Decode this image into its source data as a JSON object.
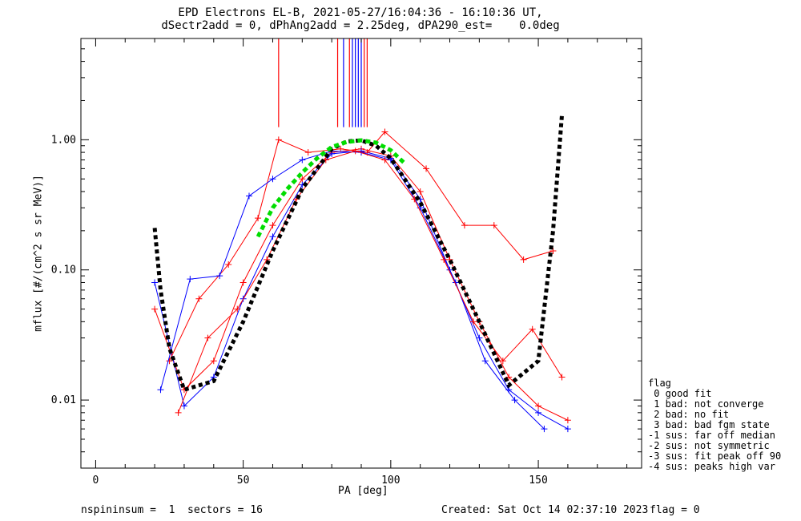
{
  "title": {
    "line1": "EPD Electrons EL-B, 2021-05-27/16:04:36 - 16:10:36 UT,",
    "line2": "dSectr2add = 0, dPhAng2add = 2.25deg, dPA290_est=    0.0deg"
  },
  "footer": {
    "left": "nspininsum =  1  sectors = 16",
    "created": "Created: Sat Oct 14 02:37:10 2023",
    "flag": "flag = 0"
  },
  "legend": {
    "title": "flag",
    "entries": [
      " 0 good fit",
      " 1 bad: not converge",
      " 2 bad: no fit",
      " 3 bad: bad fgm state",
      "-1 sus: far off median",
      "-2 sus: not symmetric",
      "-3 sus: fit peak off 90",
      "-4 sus: peaks high var"
    ]
  },
  "colors": {
    "red": "#ff0000",
    "blue": "#0000ff",
    "model": "#000000",
    "fit": "#00dd00"
  },
  "chart_data": {
    "type": "line",
    "xlabel": "PA [deg]",
    "ylabel": "mflux [#/(cm^2 s sr MeV)]",
    "xlim": [
      -5,
      185
    ],
    "ylim": [
      0.003,
      6
    ],
    "yscale": "log",
    "x_ticks": [
      0,
      50,
      100,
      150
    ],
    "y_ticks": [
      0.01,
      0.1,
      1.0
    ],
    "y_tick_labels": [
      "0.01",
      "0.10",
      "1.00"
    ],
    "model_curve": {
      "x": [
        20,
        22,
        25,
        30,
        40,
        50,
        60,
        70,
        80,
        85,
        90,
        95,
        100,
        110,
        120,
        130,
        140,
        150,
        155,
        158
      ],
      "y": [
        0.21,
        0.07,
        0.025,
        0.012,
        0.014,
        0.04,
        0.14,
        0.42,
        0.85,
        0.97,
        0.99,
        0.9,
        0.72,
        0.33,
        0.12,
        0.04,
        0.013,
        0.02,
        0.2,
        1.55
      ]
    },
    "fit_curve": {
      "x": [
        55,
        60,
        65,
        70,
        75,
        80,
        85,
        90,
        95,
        100,
        105
      ],
      "y": [
        0.18,
        0.3,
        0.42,
        0.56,
        0.72,
        0.88,
        0.96,
        0.99,
        0.95,
        0.83,
        0.65
      ]
    },
    "series": [
      {
        "color": "red",
        "x": [
          20,
          30,
          40,
          50,
          60,
          70,
          80,
          90,
          100,
          110,
          120,
          130,
          140,
          150,
          160
        ],
        "y": [
          0.05,
          0.012,
          0.02,
          0.08,
          0.22,
          0.5,
          0.8,
          0.85,
          0.75,
          0.4,
          0.12,
          0.04,
          0.015,
          0.009,
          0.007
        ]
      },
      {
        "color": "blue",
        "x": [
          20,
          30,
          40,
          50,
          60,
          70,
          80,
          90,
          100,
          110,
          120,
          130,
          140,
          150,
          160
        ],
        "y": [
          0.08,
          0.009,
          0.015,
          0.06,
          0.18,
          0.45,
          0.78,
          0.82,
          0.72,
          0.35,
          0.1,
          0.03,
          0.012,
          0.008,
          0.006
        ]
      },
      {
        "color": "red",
        "x": [
          25,
          35,
          45,
          55,
          62,
          72,
          83,
          92,
          98,
          112,
          125,
          135,
          145,
          155
        ],
        "y": [
          0.02,
          0.06,
          0.11,
          0.25,
          1.0,
          0.8,
          0.85,
          0.8,
          1.15,
          0.6,
          0.22,
          0.22,
          0.12,
          0.14
        ]
      },
      {
        "color": "blue",
        "x": [
          22,
          32,
          42,
          52,
          60,
          70,
          80,
          90,
          100,
          110,
          122,
          132,
          142,
          152
        ],
        "y": [
          0.012,
          0.085,
          0.09,
          0.37,
          0.5,
          0.7,
          0.82,
          0.8,
          0.7,
          0.3,
          0.08,
          0.02,
          0.01,
          0.006
        ]
      },
      {
        "color": "red",
        "x": [
          28,
          38,
          48,
          58,
          68,
          78,
          88,
          98,
          108,
          118,
          128,
          138,
          148,
          158
        ],
        "y": [
          0.008,
          0.03,
          0.05,
          0.12,
          0.35,
          0.7,
          0.82,
          0.7,
          0.35,
          0.12,
          0.04,
          0.02,
          0.035,
          0.015
        ]
      }
    ],
    "upper_stripes": [
      {
        "x": 62,
        "color": "red"
      },
      {
        "x": 82,
        "color": "red"
      },
      {
        "x": 84,
        "color": "blue"
      },
      {
        "x": 86,
        "color": "red"
      },
      {
        "x": 87,
        "color": "blue"
      },
      {
        "x": 88,
        "color": "blue"
      },
      {
        "x": 89,
        "color": "blue"
      },
      {
        "x": 90,
        "color": "blue"
      },
      {
        "x": 91,
        "color": "red"
      },
      {
        "x": 92,
        "color": "red"
      }
    ]
  }
}
